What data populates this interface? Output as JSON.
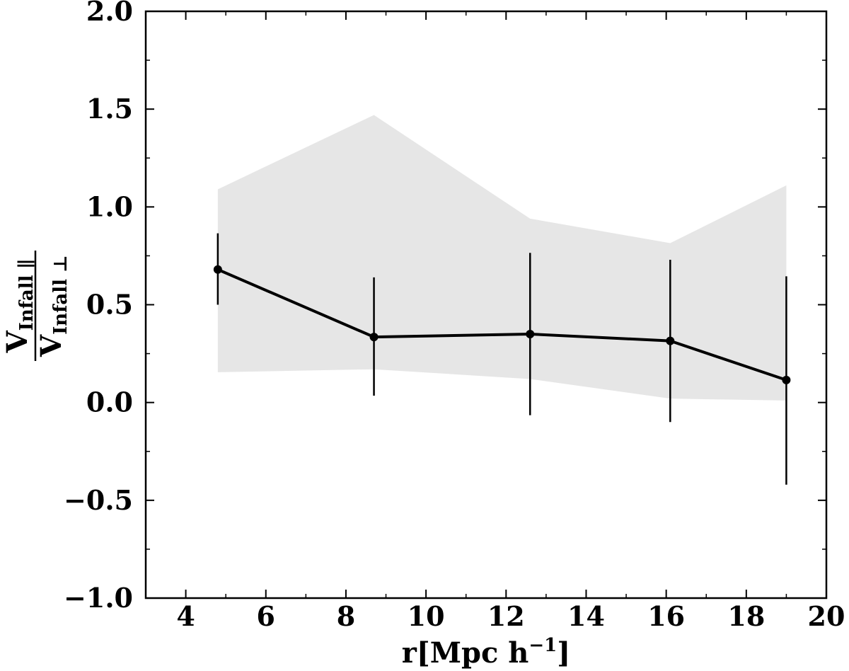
{
  "chart_data": {
    "type": "line",
    "title": "",
    "xlabel": {
      "main": "r",
      "unit": "[Mpc h",
      "exponent": "−1",
      "close": "]"
    },
    "ylabel": {
      "numerator": "V",
      "numerator_sub": "Infall ∥",
      "denominator": "V",
      "denominator_sub": "Infall ⊥"
    },
    "xlim": [
      3,
      20
    ],
    "ylim": [
      -1.0,
      2.0
    ],
    "x_ticks": [
      4,
      6,
      8,
      10,
      12,
      14,
      16,
      18,
      20
    ],
    "x_tick_labels": [
      "4",
      "6",
      "8",
      "10",
      "12",
      "14",
      "16",
      "18",
      "20"
    ],
    "x_minor_ticks": [
      5,
      7,
      9,
      11,
      13,
      15,
      17,
      19
    ],
    "y_ticks": [
      -1.0,
      -0.5,
      0.0,
      0.5,
      1.0,
      1.5,
      2.0
    ],
    "y_tick_labels": [
      "−1.0",
      "−0.5",
      "0.0",
      "0.5",
      "1.0",
      "1.5",
      "2.0"
    ],
    "y_minor_ticks": [
      -0.75,
      -0.25,
      0.25,
      0.75,
      1.25,
      1.75
    ],
    "grid": false,
    "series": [
      {
        "x": [
          4.8,
          8.7,
          12.6,
          16.1,
          19.0
        ],
        "y": [
          0.68,
          0.335,
          0.35,
          0.315,
          0.115
        ],
        "yerr_low": [
          0.5,
          0.035,
          -0.065,
          -0.1,
          -0.42
        ],
        "yerr_high": [
          0.865,
          0.64,
          0.765,
          0.73,
          0.645
        ],
        "color": "#000000"
      }
    ],
    "band": {
      "x": [
        4.8,
        8.7,
        12.6,
        16.1,
        19.0
      ],
      "upper": [
        1.09,
        1.47,
        0.94,
        0.815,
        1.11
      ],
      "lower": [
        0.155,
        0.17,
        0.12,
        0.02,
        0.01
      ],
      "color": "#e6e6e6"
    }
  }
}
